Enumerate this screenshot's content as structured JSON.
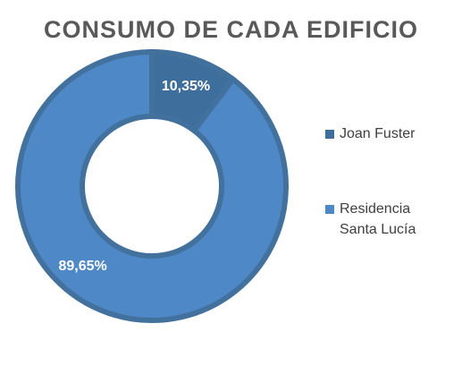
{
  "chart_data": {
    "type": "pie",
    "variant": "doughnut",
    "title": "CONSUMO DE CADA EDIFICIO",
    "categories": [
      "Joan Fuster",
      "Residencia Santa Lucía"
    ],
    "values": [
      10.35,
      89.65
    ],
    "data_labels": [
      "10,35%",
      "89,65%"
    ],
    "colors": [
      "#3E6E9C",
      "#4F88C6"
    ],
    "legend_position": "right",
    "legend": [
      {
        "lines": [
          "Joan Fuster"
        ]
      },
      {
        "lines": [
          "Residencia",
          "Santa Lucía"
        ]
      }
    ]
  }
}
